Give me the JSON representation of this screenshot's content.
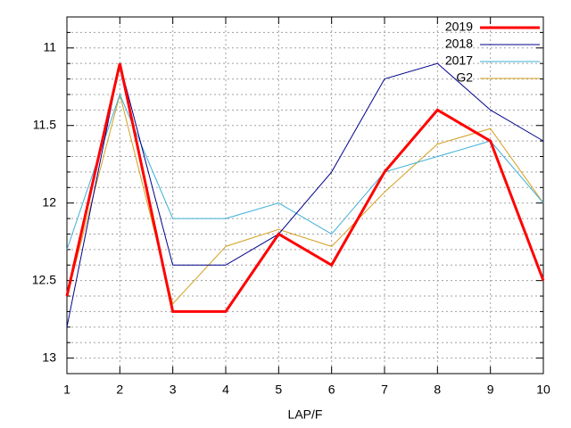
{
  "chart_data": {
    "type": "line",
    "x_label": "LAP/F",
    "x": [
      1,
      2,
      3,
      4,
      5,
      6,
      7,
      8,
      9,
      10
    ],
    "xlim": [
      1,
      10
    ],
    "xticks": [
      1,
      2,
      3,
      4,
      5,
      6,
      7,
      8,
      9,
      10
    ],
    "ylim": [
      13.1,
      10.8
    ],
    "yticks": [
      11,
      11.5,
      12,
      12.5,
      13
    ],
    "yminorticks": [
      10.9,
      11.1,
      11.2,
      11.3,
      11.4,
      11.6,
      11.7,
      11.8,
      11.9,
      12.1,
      12.2,
      12.3,
      12.4,
      12.6,
      12.7,
      12.8,
      12.9,
      13.1
    ],
    "grid": true,
    "legend": "top-right",
    "series": [
      {
        "name": "2019",
        "color": "#ff0000",
        "line_width": 3,
        "values": [
          12.6,
          11.1,
          12.7,
          12.7,
          12.2,
          12.4,
          11.8,
          11.4,
          11.6,
          12.5
        ]
      },
      {
        "name": "2018",
        "color": "#00008b",
        "line_width": 1,
        "values": [
          12.8,
          11.1,
          12.4,
          12.4,
          12.2,
          11.8,
          11.2,
          11.1,
          11.4,
          11.6
        ]
      },
      {
        "name": "2017",
        "color": "#3fb0d8",
        "line_width": 1,
        "values": [
          12.3,
          11.3,
          12.1,
          12.1,
          12.0,
          12.2,
          11.8,
          11.7,
          11.6,
          12.0
        ]
      },
      {
        "name": "G2",
        "color": "#d4a020",
        "line_width": 1,
        "values": [
          12.6,
          11.3,
          12.65,
          12.28,
          12.17,
          12.28,
          11.93,
          11.62,
          11.52,
          12.0
        ]
      }
    ]
  }
}
